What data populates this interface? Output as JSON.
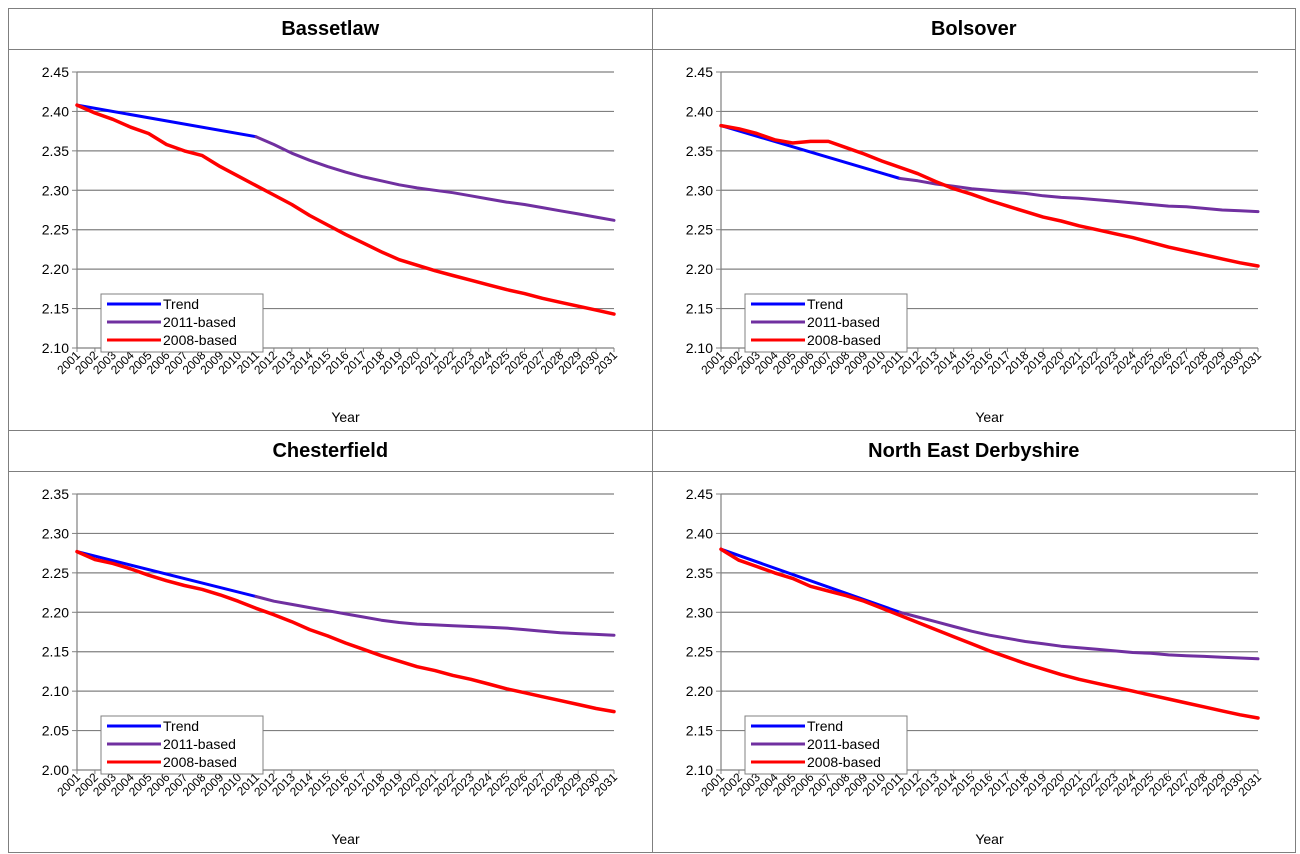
{
  "years": [
    "2001",
    "2002",
    "2003",
    "2004",
    "2005",
    "2006",
    "2007",
    "2008",
    "2009",
    "2010",
    "2011",
    "2012",
    "2013",
    "2014",
    "2015",
    "2016",
    "2017",
    "2018",
    "2019",
    "2020",
    "2021",
    "2022",
    "2023",
    "2024",
    "2025",
    "2026",
    "2027",
    "2028",
    "2029",
    "2030",
    "2031"
  ],
  "colors": {
    "Trend": "#0000ff",
    "2011-based": "#7030a0",
    "2008-based": "#ff0000",
    "grid": "#808080",
    "axis": "#808080"
  },
  "panels": [
    {
      "title": "Bassetlaw"
    },
    {
      "title": "Bolsover"
    },
    {
      "title": "Chesterfield"
    },
    {
      "title": "North East Derbyshire"
    }
  ],
  "chart_data": [
    {
      "type": "line",
      "title": "Bassetlaw",
      "xlabel": "Year",
      "ylabel": "",
      "ylim": [
        2.1,
        2.45
      ],
      "yticks": [
        "2.10",
        "2.15",
        "2.20",
        "2.25",
        "2.30",
        "2.35",
        "2.40",
        "2.45"
      ],
      "grid": true,
      "legend": "bottom-left",
      "x": [
        2001,
        2002,
        2003,
        2004,
        2005,
        2006,
        2007,
        2008,
        2009,
        2010,
        2011,
        2012,
        2013,
        2014,
        2015,
        2016,
        2017,
        2018,
        2019,
        2020,
        2021,
        2022,
        2023,
        2024,
        2025,
        2026,
        2027,
        2028,
        2029,
        2030,
        2031
      ],
      "series": [
        {
          "name": "Trend",
          "x": [
            2001,
            2011
          ],
          "values": [
            2.408,
            2.368
          ]
        },
        {
          "name": "2011-based",
          "x": [
            2011,
            2012,
            2013,
            2014,
            2015,
            2016,
            2017,
            2018,
            2019,
            2020,
            2021,
            2022,
            2023,
            2024,
            2025,
            2026,
            2027,
            2028,
            2029,
            2030,
            2031
          ],
          "values": [
            2.368,
            2.358,
            2.347,
            2.338,
            2.33,
            2.323,
            2.317,
            2.312,
            2.307,
            2.303,
            2.3,
            2.297,
            2.293,
            2.289,
            2.285,
            2.282,
            2.278,
            2.274,
            2.27,
            2.266,
            2.262
          ]
        },
        {
          "name": "2008-based",
          "x": [
            2001,
            2002,
            2003,
            2004,
            2005,
            2006,
            2007,
            2008,
            2009,
            2010,
            2011,
            2012,
            2013,
            2014,
            2015,
            2016,
            2017,
            2018,
            2019,
            2020,
            2021,
            2022,
            2023,
            2024,
            2025,
            2026,
            2027,
            2028,
            2029,
            2030,
            2031
          ],
          "values": [
            2.408,
            2.398,
            2.39,
            2.38,
            2.372,
            2.358,
            2.35,
            2.344,
            2.33,
            2.318,
            2.306,
            2.294,
            2.282,
            2.268,
            2.256,
            2.244,
            2.233,
            2.222,
            2.212,
            2.205,
            2.198,
            2.192,
            2.186,
            2.18,
            2.174,
            2.169,
            2.163,
            2.158,
            2.153,
            2.148,
            2.143
          ]
        }
      ]
    },
    {
      "type": "line",
      "title": "Bolsover",
      "xlabel": "Year",
      "ylabel": "",
      "ylim": [
        2.1,
        2.45
      ],
      "yticks": [
        "2.10",
        "2.15",
        "2.20",
        "2.25",
        "2.30",
        "2.35",
        "2.40",
        "2.45"
      ],
      "grid": true,
      "legend": "bottom-left",
      "x": [
        2001,
        2002,
        2003,
        2004,
        2005,
        2006,
        2007,
        2008,
        2009,
        2010,
        2011,
        2012,
        2013,
        2014,
        2015,
        2016,
        2017,
        2018,
        2019,
        2020,
        2021,
        2022,
        2023,
        2024,
        2025,
        2026,
        2027,
        2028,
        2029,
        2030,
        2031
      ],
      "series": [
        {
          "name": "Trend",
          "x": [
            2001,
            2011
          ],
          "values": [
            2.382,
            2.315
          ]
        },
        {
          "name": "2011-based",
          "x": [
            2011,
            2012,
            2013,
            2014,
            2015,
            2016,
            2017,
            2018,
            2019,
            2020,
            2021,
            2022,
            2023,
            2024,
            2025,
            2026,
            2027,
            2028,
            2029,
            2030,
            2031
          ],
          "values": [
            2.315,
            2.312,
            2.308,
            2.305,
            2.302,
            2.3,
            2.298,
            2.296,
            2.293,
            2.291,
            2.29,
            2.288,
            2.286,
            2.284,
            2.282,
            2.28,
            2.279,
            2.277,
            2.275,
            2.274,
            2.273
          ]
        },
        {
          "name": "2008-based",
          "x": [
            2001,
            2002,
            2003,
            2004,
            2005,
            2006,
            2007,
            2008,
            2009,
            2010,
            2011,
            2012,
            2013,
            2014,
            2015,
            2016,
            2017,
            2018,
            2019,
            2020,
            2021,
            2022,
            2023,
            2024,
            2025,
            2026,
            2027,
            2028,
            2029,
            2030,
            2031
          ],
          "values": [
            2.382,
            2.378,
            2.372,
            2.364,
            2.36,
            2.362,
            2.362,
            2.354,
            2.346,
            2.337,
            2.329,
            2.321,
            2.311,
            2.302,
            2.295,
            2.287,
            2.28,
            2.273,
            2.266,
            2.261,
            2.255,
            2.25,
            2.245,
            2.24,
            2.234,
            2.228,
            2.223,
            2.218,
            2.213,
            2.208,
            2.204
          ]
        }
      ]
    },
    {
      "type": "line",
      "title": "Chesterfield",
      "xlabel": "Year",
      "ylabel": "",
      "ylim": [
        2.0,
        2.35
      ],
      "yticks": [
        "2.00",
        "2.05",
        "2.10",
        "2.15",
        "2.20",
        "2.25",
        "2.30",
        "2.35"
      ],
      "grid": true,
      "legend": "bottom-left",
      "x": [
        2001,
        2002,
        2003,
        2004,
        2005,
        2006,
        2007,
        2008,
        2009,
        2010,
        2011,
        2012,
        2013,
        2014,
        2015,
        2016,
        2017,
        2018,
        2019,
        2020,
        2021,
        2022,
        2023,
        2024,
        2025,
        2026,
        2027,
        2028,
        2029,
        2030,
        2031
      ],
      "series": [
        {
          "name": "Trend",
          "x": [
            2001,
            2011
          ],
          "values": [
            2.277,
            2.22
          ]
        },
        {
          "name": "2011-based",
          "x": [
            2011,
            2012,
            2013,
            2014,
            2015,
            2016,
            2017,
            2018,
            2019,
            2020,
            2021,
            2022,
            2023,
            2024,
            2025,
            2026,
            2027,
            2028,
            2029,
            2030,
            2031
          ],
          "values": [
            2.22,
            2.214,
            2.21,
            2.206,
            2.202,
            2.198,
            2.194,
            2.19,
            2.187,
            2.185,
            2.184,
            2.183,
            2.182,
            2.181,
            2.18,
            2.178,
            2.176,
            2.174,
            2.173,
            2.172,
            2.171
          ]
        },
        {
          "name": "2008-based",
          "x": [
            2001,
            2002,
            2003,
            2004,
            2005,
            2006,
            2007,
            2008,
            2009,
            2010,
            2011,
            2012,
            2013,
            2014,
            2015,
            2016,
            2017,
            2018,
            2019,
            2020,
            2021,
            2022,
            2023,
            2024,
            2025,
            2026,
            2027,
            2028,
            2029,
            2030,
            2031
          ],
          "values": [
            2.277,
            2.267,
            2.262,
            2.255,
            2.247,
            2.24,
            2.234,
            2.229,
            2.222,
            2.214,
            2.205,
            2.197,
            2.188,
            2.178,
            2.17,
            2.161,
            2.153,
            2.145,
            2.138,
            2.131,
            2.126,
            2.12,
            2.115,
            2.109,
            2.103,
            2.098,
            2.093,
            2.088,
            2.083,
            2.078,
            2.074
          ]
        }
      ]
    },
    {
      "type": "line",
      "title": "North East Derbyshire",
      "xlabel": "Year",
      "ylabel": "",
      "ylim": [
        2.1,
        2.45
      ],
      "yticks": [
        "2.10",
        "2.15",
        "2.20",
        "2.25",
        "2.30",
        "2.35",
        "2.40",
        "2.45"
      ],
      "grid": true,
      "legend": "bottom-left",
      "x": [
        2001,
        2002,
        2003,
        2004,
        2005,
        2006,
        2007,
        2008,
        2009,
        2010,
        2011,
        2012,
        2013,
        2014,
        2015,
        2016,
        2017,
        2018,
        2019,
        2020,
        2021,
        2022,
        2023,
        2024,
        2025,
        2026,
        2027,
        2028,
        2029,
        2030,
        2031
      ],
      "series": [
        {
          "name": "Trend",
          "x": [
            2001,
            2011
          ],
          "values": [
            2.38,
            2.3
          ]
        },
        {
          "name": "2011-based",
          "x": [
            2011,
            2012,
            2013,
            2014,
            2015,
            2016,
            2017,
            2018,
            2019,
            2020,
            2021,
            2022,
            2023,
            2024,
            2025,
            2026,
            2027,
            2028,
            2029,
            2030,
            2031
          ],
          "values": [
            2.3,
            2.294,
            2.288,
            2.282,
            2.276,
            2.271,
            2.267,
            2.263,
            2.26,
            2.257,
            2.255,
            2.253,
            2.251,
            2.249,
            2.248,
            2.246,
            2.245,
            2.244,
            2.243,
            2.242,
            2.241
          ]
        },
        {
          "name": "2008-based",
          "x": [
            2001,
            2002,
            2003,
            2004,
            2005,
            2006,
            2007,
            2008,
            2009,
            2010,
            2011,
            2012,
            2013,
            2014,
            2015,
            2016,
            2017,
            2018,
            2019,
            2020,
            2021,
            2022,
            2023,
            2024,
            2025,
            2026,
            2027,
            2028,
            2029,
            2030,
            2031
          ],
          "values": [
            2.38,
            2.366,
            2.358,
            2.35,
            2.343,
            2.333,
            2.327,
            2.321,
            2.314,
            2.305,
            2.296,
            2.287,
            2.278,
            2.269,
            2.26,
            2.251,
            2.243,
            2.235,
            2.228,
            2.221,
            2.215,
            2.21,
            2.205,
            2.2,
            2.195,
            2.19,
            2.185,
            2.18,
            2.175,
            2.17,
            2.166
          ]
        }
      ]
    }
  ]
}
